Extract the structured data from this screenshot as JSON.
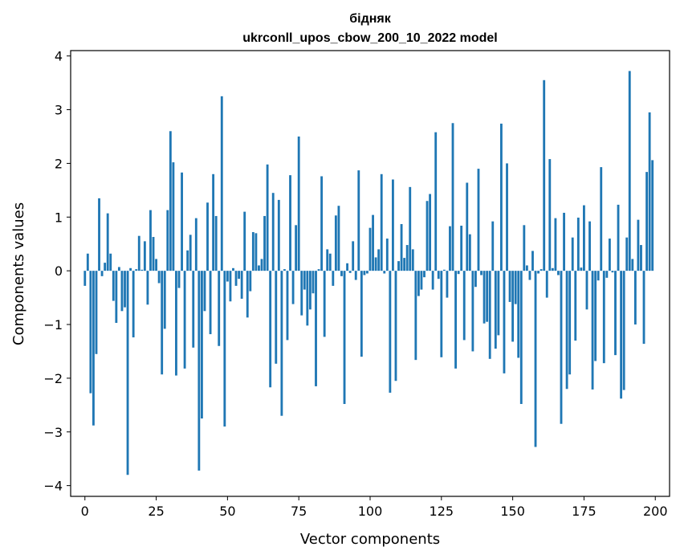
{
  "chart_data": {
    "type": "bar",
    "title": "бідняк",
    "subtitle": "ukrconll_upos_cbow_200_10_2022 model",
    "xlabel": "Vector components",
    "ylabel": "Components values",
    "xlim": [
      -5,
      205
    ],
    "ylim": [
      -4.2,
      4.1
    ],
    "xticks": [
      0,
      25,
      50,
      75,
      100,
      125,
      150,
      175,
      200
    ],
    "yticks": [
      -4,
      -3,
      -2,
      -1,
      0,
      1,
      2,
      3,
      4
    ],
    "xtick_labels": [
      "0",
      "25",
      "50",
      "75",
      "100",
      "125",
      "150",
      "175",
      "200"
    ],
    "ytick_labels": [
      "−4",
      "−3",
      "−2",
      "−1",
      "0",
      "1",
      "2",
      "3",
      "4"
    ],
    "color": "#1f77b4",
    "values": [
      -0.28,
      0.32,
      -2.28,
      -2.88,
      -1.55,
      1.35,
      -0.1,
      0.15,
      1.07,
      0.32,
      -0.56,
      -0.97,
      0.07,
      -0.75,
      -0.68,
      -3.8,
      0.05,
      -1.24,
      0.03,
      0.65,
      0.02,
      0.55,
      -0.63,
      1.13,
      0.63,
      0.22,
      -0.23,
      -1.93,
      -1.08,
      1.13,
      2.6,
      2.02,
      -1.95,
      -0.32,
      1.83,
      -1.82,
      0.38,
      0.67,
      -1.43,
      0.98,
      -3.72,
      -2.75,
      -0.75,
      1.27,
      -1.18,
      1.8,
      1.02,
      -1.4,
      3.25,
      -2.9,
      -0.2,
      -0.57,
      0.05,
      -0.28,
      -0.15,
      -0.52,
      1.1,
      -0.87,
      -0.38,
      0.72,
      0.7,
      0.1,
      0.22,
      1.02,
      1.98,
      -2.17,
      1.45,
      -1.73,
      1.32,
      -2.7,
      0.03,
      -1.29,
      1.78,
      -0.62,
      0.85,
      2.5,
      -0.83,
      -0.35,
      -1.02,
      -0.72,
      -0.42,
      -2.15,
      0.03,
      1.76,
      -1.23,
      0.4,
      0.32,
      -0.28,
      1.03,
      1.21,
      -0.1,
      -2.48,
      0.14,
      -0.04,
      0.55,
      -0.17,
      1.87,
      -1.6,
      -0.08,
      -0.05,
      0.8,
      1.04,
      0.25,
      0.4,
      1.8,
      -0.05,
      0.6,
      -2.27,
      1.7,
      -2.05,
      0.18,
      0.87,
      0.24,
      0.48,
      1.56,
      0.4,
      -1.66,
      -0.47,
      -0.35,
      -0.12,
      1.3,
      1.43,
      -0.35,
      2.58,
      -0.15,
      -1.61,
      0.02,
      -0.5,
      0.83,
      2.75,
      -1.82,
      -0.06,
      0.84,
      -1.29,
      1.64,
      0.68,
      -1.5,
      -0.3,
      1.9,
      -0.08,
      -0.98,
      -0.95,
      -1.64,
      0.92,
      -1.45,
      -1.2,
      2.74,
      -1.91,
      2.0,
      -0.58,
      -1.32,
      -0.62,
      -1.62,
      -2.48,
      0.85,
      0.1,
      -0.17,
      0.37,
      -3.28,
      -0.05,
      0.03,
      3.55,
      -0.5,
      2.08,
      0.05,
      0.98,
      -0.08,
      -2.85,
      1.08,
      -2.2,
      -1.93,
      0.62,
      -1.3,
      0.99,
      0.06,
      1.22,
      -0.72,
      0.92,
      -2.21,
      -1.68,
      -0.18,
      1.93,
      -1.72,
      -0.13,
      0.6,
      -0.03,
      -1.57,
      1.23,
      -2.38,
      -2.22,
      0.62,
      3.72,
      0.22,
      -1.0,
      0.95,
      0.48,
      -1.36,
      1.84,
      2.95,
      2.06
    ]
  }
}
